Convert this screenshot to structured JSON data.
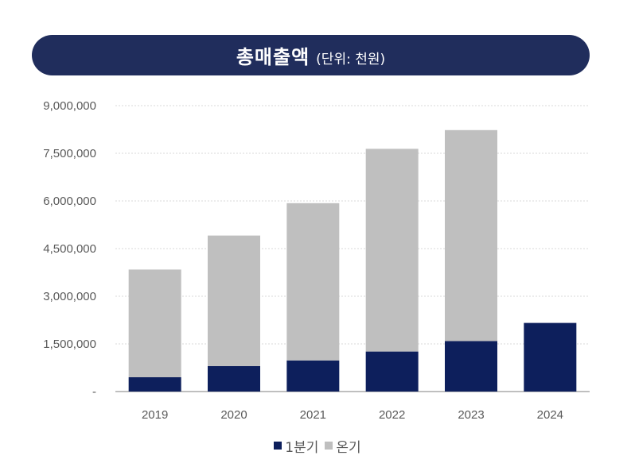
{
  "title": {
    "main": "총매출액",
    "unit": "(단위: 천원)"
  },
  "chart_data": {
    "type": "bar",
    "stacked": true,
    "categories": [
      "2019",
      "2020",
      "2021",
      "2022",
      "2023",
      "2024"
    ],
    "series": [
      {
        "name": "1분기",
        "color": "#0d1f5c",
        "values": [
          450000,
          800000,
          980000,
          1260000,
          1590000,
          2160000
        ]
      },
      {
        "name": "온기",
        "color": "#bfbfbf",
        "values": [
          3390000,
          4110000,
          4950000,
          6380000,
          6640000,
          0
        ]
      }
    ],
    "yticks": [
      "-",
      "1,500,000",
      "3,000,000",
      "4,500,000",
      "6,000,000",
      "7,500,000",
      "9,000,000"
    ],
    "ylim": [
      0,
      9000000
    ],
    "ystep": 1500000,
    "grid": true,
    "legend_position": "bottom"
  }
}
